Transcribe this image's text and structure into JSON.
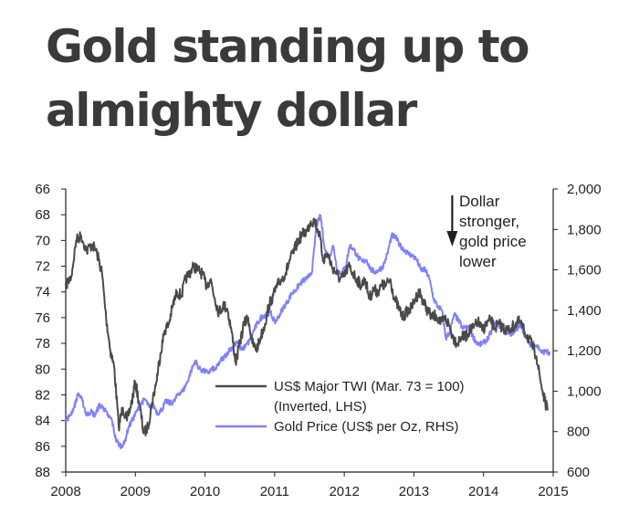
{
  "title_lines": [
    "Gold standing up to",
    "almighty dollar"
  ],
  "chart_data": {
    "type": "line",
    "x_range": [
      2008.0,
      2015.0
    ],
    "x_ticks": [
      "2008",
      "2009",
      "2010",
      "2011",
      "2012",
      "2013",
      "2014",
      "2015"
    ],
    "left_axis": {
      "ylim": [
        88,
        66
      ],
      "inverted": true,
      "ticks": [
        "66",
        "68",
        "70",
        "72",
        "74",
        "76",
        "78",
        "80",
        "82",
        "84",
        "86",
        "88"
      ]
    },
    "right_axis": {
      "ylim": [
        600,
        2000
      ],
      "ticks": [
        "600",
        "800",
        "1,000",
        "1,200",
        "1,400",
        "1,600",
        "1,800",
        "2,000"
      ]
    },
    "annotation": {
      "lines": [
        "Dollar",
        "stronger,",
        "gold price",
        "lower"
      ],
      "arrow_x": 2013.55
    },
    "legend": {
      "placement": "bottom-center",
      "entries": [
        {
          "lines": [
            "US$ Major TWI (Mar. 73 = 100)",
            "(Inverted, LHS)"
          ],
          "series": 0
        },
        {
          "lines": [
            "Gold Price (US$ per Oz, RHS)"
          ],
          "series": 1
        }
      ]
    },
    "series": [
      {
        "name": "US$ Major TWI (Mar. 73 = 100)",
        "axis": "left",
        "color": "#4a4a4a",
        "x": [
          2008.0,
          2008.08,
          2008.15,
          2008.22,
          2008.3,
          2008.38,
          2008.45,
          2008.52,
          2008.58,
          2008.64,
          2008.7,
          2008.76,
          2008.82,
          2008.88,
          2008.95,
          2009.0,
          2009.06,
          2009.12,
          2009.18,
          2009.24,
          2009.3,
          2009.36,
          2009.42,
          2009.48,
          2009.54,
          2009.6,
          2009.66,
          2009.72,
          2009.78,
          2009.84,
          2009.9,
          2009.96,
          2010.02,
          2010.08,
          2010.14,
          2010.2,
          2010.26,
          2010.32,
          2010.38,
          2010.44,
          2010.5,
          2010.56,
          2010.62,
          2010.68,
          2010.74,
          2010.8,
          2010.86,
          2010.92,
          2010.98,
          2011.04,
          2011.1,
          2011.16,
          2011.22,
          2011.28,
          2011.34,
          2011.4,
          2011.46,
          2011.52,
          2011.58,
          2011.64,
          2011.7,
          2011.76,
          2011.82,
          2011.88,
          2011.94,
          2012.0,
          2012.06,
          2012.12,
          2012.18,
          2012.24,
          2012.3,
          2012.36,
          2012.42,
          2012.48,
          2012.54,
          2012.6,
          2012.66,
          2012.72,
          2012.78,
          2012.84,
          2012.9,
          2012.96,
          2013.02,
          2013.08,
          2013.14,
          2013.2,
          2013.26,
          2013.32,
          2013.38,
          2013.44,
          2013.5,
          2013.56,
          2013.62,
          2013.68,
          2013.74,
          2013.8,
          2013.86,
          2013.92,
          2013.98,
          2014.04,
          2014.1,
          2014.16,
          2014.22,
          2014.28,
          2014.34,
          2014.4,
          2014.46,
          2014.52,
          2014.58,
          2014.64,
          2014.7,
          2014.76,
          2014.82,
          2014.88,
          2014.92
        ],
        "y": [
          73.5,
          72.8,
          70.0,
          69.6,
          70.8,
          70.3,
          71.0,
          72.5,
          76.0,
          78.5,
          80.0,
          84.5,
          83.0,
          84.0,
          82.5,
          81.0,
          82.8,
          85.0,
          84.5,
          82.6,
          81.0,
          78.8,
          77.0,
          76.5,
          75.0,
          74.0,
          74.3,
          73.0,
          72.5,
          72.0,
          72.3,
          72.6,
          73.5,
          73.0,
          74.5,
          75.6,
          75.0,
          75.3,
          77.0,
          79.5,
          78.0,
          76.5,
          76.0,
          78.0,
          78.5,
          77.5,
          76.5,
          75.0,
          74.3,
          73.5,
          73.0,
          72.5,
          71.5,
          70.8,
          70.0,
          69.5,
          69.3,
          68.5,
          68.5,
          69.5,
          71.5,
          71.0,
          72.0,
          72.5,
          73.0,
          72.8,
          72.0,
          72.5,
          73.0,
          73.5,
          73.0,
          74.5,
          73.8,
          74.0,
          73.5,
          73.5,
          73.0,
          74.5,
          75.2,
          76.0,
          75.5,
          75.3,
          74.5,
          74.0,
          74.8,
          75.5,
          76.0,
          75.8,
          76.5,
          76.0,
          76.5,
          77.5,
          78.0,
          77.5,
          77.5,
          77.0,
          76.8,
          76.3,
          77.0,
          76.5,
          76.2,
          76.8,
          76.5,
          76.8,
          77.0,
          76.8,
          76.5,
          76.3,
          77.0,
          77.5,
          78.2,
          79.0,
          81.0,
          82.5,
          83.2
        ]
      },
      {
        "name": "Gold Price (US$ per Oz, RHS)",
        "axis": "right",
        "color": "#8080ff",
        "x": [
          2008.0,
          2008.06,
          2008.12,
          2008.18,
          2008.24,
          2008.3,
          2008.36,
          2008.42,
          2008.48,
          2008.54,
          2008.6,
          2008.66,
          2008.72,
          2008.78,
          2008.84,
          2008.9,
          2008.96,
          2009.02,
          2009.08,
          2009.14,
          2009.2,
          2009.26,
          2009.32,
          2009.38,
          2009.44,
          2009.5,
          2009.56,
          2009.62,
          2009.68,
          2009.74,
          2009.8,
          2009.86,
          2009.92,
          2009.98,
          2010.04,
          2010.1,
          2010.16,
          2010.22,
          2010.28,
          2010.34,
          2010.4,
          2010.46,
          2010.52,
          2010.58,
          2010.64,
          2010.7,
          2010.76,
          2010.82,
          2010.88,
          2010.94,
          2011.0,
          2011.06,
          2011.12,
          2011.18,
          2011.24,
          2011.3,
          2011.36,
          2011.42,
          2011.48,
          2011.54,
          2011.6,
          2011.66,
          2011.72,
          2011.78,
          2011.84,
          2011.9,
          2011.96,
          2012.02,
          2012.08,
          2012.14,
          2012.2,
          2012.26,
          2012.32,
          2012.38,
          2012.44,
          2012.5,
          2012.56,
          2012.62,
          2012.68,
          2012.74,
          2012.8,
          2012.86,
          2012.92,
          2012.98,
          2013.04,
          2013.1,
          2013.16,
          2013.22,
          2013.28,
          2013.34,
          2013.4,
          2013.46,
          2013.52,
          2013.58,
          2013.64,
          2013.7,
          2013.76,
          2013.82,
          2013.88,
          2013.94,
          2014.0,
          2014.06,
          2014.12,
          2014.18,
          2014.24,
          2014.3,
          2014.36,
          2014.42,
          2014.48,
          2014.54,
          2014.6,
          2014.66,
          2014.72,
          2014.78,
          2014.84,
          2014.9,
          2014.95
        ],
        "y": [
          850,
          880,
          920,
          990,
          950,
          880,
          900,
          880,
          930,
          920,
          880,
          860,
          760,
          730,
          740,
          820,
          860,
          900,
          940,
          960,
          920,
          930,
          890,
          910,
          950,
          940,
          950,
          990,
          1000,
          1040,
          1100,
          1150,
          1110,
          1100,
          1090,
          1110,
          1110,
          1150,
          1170,
          1200,
          1220,
          1240,
          1210,
          1220,
          1250,
          1300,
          1340,
          1370,
          1380,
          1390,
          1340,
          1370,
          1410,
          1440,
          1480,
          1500,
          1530,
          1550,
          1560,
          1600,
          1820,
          1870,
          1700,
          1660,
          1720,
          1600,
          1580,
          1620,
          1720,
          1700,
          1660,
          1640,
          1650,
          1600,
          1590,
          1600,
          1620,
          1680,
          1770,
          1760,
          1720,
          1700,
          1680,
          1670,
          1650,
          1600,
          1600,
          1560,
          1460,
          1420,
          1400,
          1260,
          1300,
          1380,
          1350,
          1310,
          1320,
          1290,
          1250,
          1230,
          1240,
          1260,
          1300,
          1340,
          1320,
          1300,
          1290,
          1280,
          1310,
          1330,
          1270,
          1230,
          1240,
          1220,
          1190,
          1200,
          1180
        ]
      }
    ]
  }
}
